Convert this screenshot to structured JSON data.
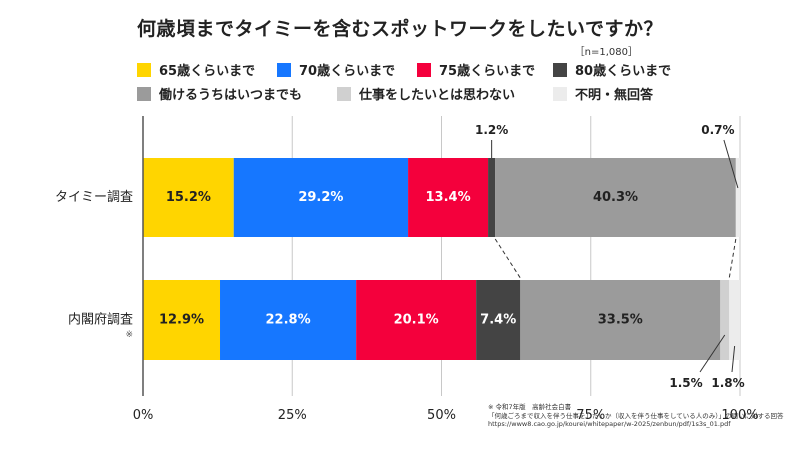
{
  "title": "何歳頃までタイミーを含むスポットワークをしたいですか？",
  "sample_size": "［n=1,080］",
  "legend": [
    {
      "label": "65歳くらいまで",
      "color": "#FFD500"
    },
    {
      "label": "70歳くらいまで",
      "color": "#1677FF"
    },
    {
      "label": "75歳くらいまで",
      "color": "#F4003C"
    },
    {
      "label": "80歳くらいまで",
      "color": "#444444"
    },
    {
      "label": "働けるうちはいつまでも",
      "color": "#9B9B9B"
    },
    {
      "label": "仕事をしたいとは思わない",
      "color": "#D0D0D0"
    },
    {
      "label": "不明・無回答",
      "color": "#ECECEC"
    }
  ],
  "chart_data": {
    "type": "bar",
    "orientation": "horizontal-stacked-percent",
    "categories": [
      "タイミー調査",
      "内閣府調査"
    ],
    "category_marks": [
      "",
      "※"
    ],
    "series": [
      {
        "name": "65歳くらいまで",
        "values": [
          15.2,
          12.9
        ],
        "labels": [
          "15.2%",
          "12.9%"
        ]
      },
      {
        "name": "70歳くらいまで",
        "values": [
          29.2,
          22.8
        ],
        "labels": [
          "29.2%",
          "22.8%"
        ]
      },
      {
        "name": "75歳くらいまで",
        "values": [
          13.4,
          20.1
        ],
        "labels": [
          "13.4%",
          "20.1%"
        ]
      },
      {
        "name": "80歳くらいまで",
        "values": [
          1.2,
          7.4
        ],
        "labels": [
          "1.2%",
          "7.4%"
        ]
      },
      {
        "name": "働けるうちはいつまでも",
        "values": [
          40.3,
          33.5
        ],
        "labels": [
          "40.3%",
          "33.5%"
        ]
      },
      {
        "name": "仕事をしたいとは思わない",
        "values": [
          0.0,
          1.5
        ],
        "labels": [
          "",
          "1.5%"
        ]
      },
      {
        "name": "不明・無回答",
        "values": [
          0.7,
          1.8
        ],
        "labels": [
          "0.7%",
          "1.8%"
        ]
      }
    ],
    "x_ticks": [
      0,
      25,
      50,
      75,
      100
    ],
    "x_tick_labels": [
      "0%",
      "25%",
      "50%",
      "75%",
      "100%"
    ],
    "xlim": [
      0,
      100
    ],
    "grid": true,
    "connectors": true,
    "legend_position": "top"
  },
  "footnote": [
    "※ 令和7年版　高齢社会白書",
    "「何歳ごろまで収入を伴う仕事をしたいか（収入を伴う仕事をしている人のみ）」の問いに対する回答",
    "https://www8.cao.go.jp/kourei/whitepaper/w-2025/zenbun/pdf/1s3s_01.pdf"
  ]
}
